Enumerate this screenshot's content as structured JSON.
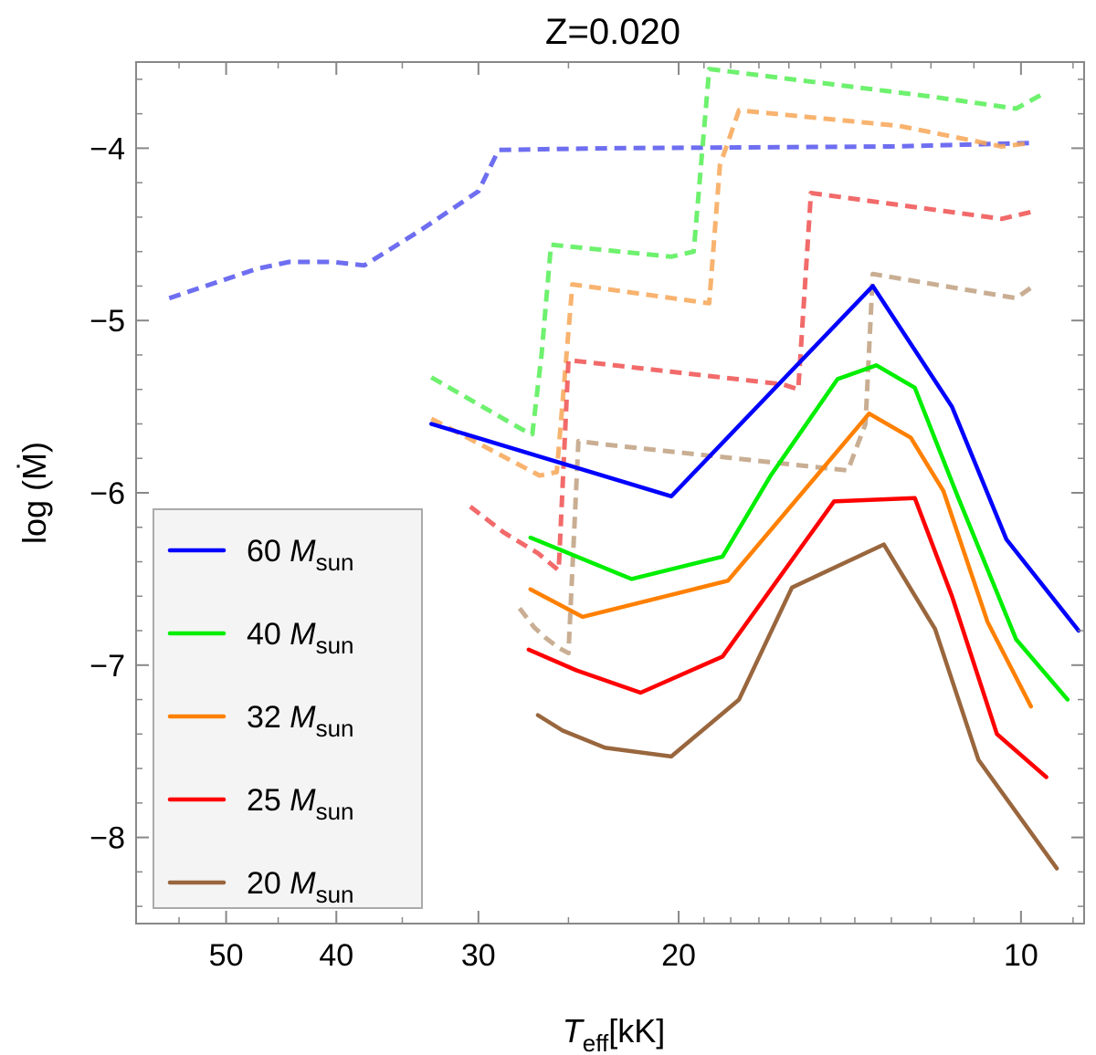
{
  "chart_data": {
    "type": "line",
    "title": "Z=0.020",
    "xlabel": {
      "main": "T",
      "sub": "eff",
      "unit": "[kK]"
    },
    "ylabel": "log (Ṁ)",
    "x_scale": "log-reversed",
    "xlim": [
      60,
      8.8
    ],
    "ylim": [
      -8.5,
      -3.5
    ],
    "x_ticks": [
      50,
      40,
      30,
      20,
      10
    ],
    "x_ticks_minor": [
      55,
      45,
      35,
      25,
      19,
      18,
      17,
      16,
      15,
      14,
      13,
      12,
      11,
      9
    ],
    "y_ticks": [
      -8,
      -7,
      -6,
      -5,
      -4
    ],
    "legend": {
      "position": "bottom-left",
      "entries": [
        {
          "value": "60",
          "symbol": "M",
          "sub": "sun",
          "color": "#0000ff"
        },
        {
          "value": "40",
          "symbol": "M",
          "sub": "sun",
          "color": "#00ee00"
        },
        {
          "value": "32",
          "symbol": "M",
          "sub": "sun",
          "color": "#ff8000"
        },
        {
          "value": "25",
          "symbol": "M",
          "sub": "sun",
          "color": "#ff0000"
        },
        {
          "value": "20",
          "symbol": "M",
          "sub": "sun",
          "color": "#99663d"
        }
      ]
    },
    "series": [
      {
        "name": "60 Msun",
        "style": "solid",
        "color": "#0000ff",
        "x": [
          33,
          20.3,
          13.5,
          11.5,
          10.3,
          8.9
        ],
        "y": [
          -5.6,
          -6.02,
          -4.8,
          -5.5,
          -6.27,
          -6.8
        ]
      },
      {
        "name": "40 Msun",
        "style": "solid",
        "color": "#00ee00",
        "x": [
          27,
          22,
          18.3,
          16.6,
          14.5,
          13.4,
          12.4,
          11.4,
          10.1,
          9.1
        ],
        "y": [
          -6.26,
          -6.5,
          -6.37,
          -5.9,
          -5.34,
          -5.26,
          -5.39,
          -6.0,
          -6.85,
          -7.2
        ]
      },
      {
        "name": "32 Msun",
        "style": "solid",
        "color": "#ff8000",
        "x": [
          27,
          24.3,
          18.1,
          13.6,
          12.5,
          11.7,
          10.7,
          9.8
        ],
        "y": [
          -6.56,
          -6.72,
          -6.51,
          -5.54,
          -5.68,
          -5.99,
          -6.75,
          -7.24
        ]
      },
      {
        "name": "25 Msun",
        "style": "solid",
        "color": "#ff0000",
        "x": [
          27.1,
          24.6,
          21.6,
          18.3,
          14.6,
          12.4,
          11.5,
          10.5,
          9.5
        ],
        "y": [
          -6.91,
          -7.03,
          -7.16,
          -6.95,
          -6.05,
          -6.03,
          -6.6,
          -7.4,
          -7.65
        ]
      },
      {
        "name": "20 Msun",
        "style": "solid",
        "color": "#99663d",
        "x": [
          26.6,
          25.3,
          23.2,
          20.3,
          17.7,
          15.9,
          13.2,
          11.9,
          10.9,
          9.3
        ],
        "y": [
          -7.29,
          -7.38,
          -7.48,
          -7.53,
          -7.2,
          -6.55,
          -6.3,
          -6.79,
          -7.55,
          -8.18
        ]
      },
      {
        "name": "60 Msun dashed",
        "style": "dashed",
        "color": "#5555ee",
        "x": [
          56.1,
          50.0,
          47.0,
          44.0,
          40.3,
          37.8,
          33.8,
          30.0,
          28.8,
          23.0,
          13.0,
          9.8
        ],
        "y": [
          -4.87,
          -4.76,
          -4.7,
          -4.66,
          -4.66,
          -4.68,
          -4.48,
          -4.25,
          -4.01,
          -4.0,
          -3.99,
          -3.97
        ]
      },
      {
        "name": "40 Msun dashed",
        "style": "dashed",
        "color": "#55ee55",
        "x": [
          33,
          27.5,
          26.9,
          26.4,
          25.9,
          20.3,
          19.4,
          18.8,
          12.0,
          10.1,
          9.6
        ],
        "y": [
          -5.33,
          -5.63,
          -5.66,
          -5.2,
          -4.56,
          -4.63,
          -4.6,
          -3.54,
          -3.7,
          -3.77,
          -3.69
        ]
      },
      {
        "name": "32 Msun dashed",
        "style": "dashed",
        "color": "#f7a656",
        "x": [
          33,
          26.5,
          25.6,
          24.8,
          18.8,
          18.4,
          17.7,
          12.8,
          10.4,
          9.8
        ],
        "y": [
          -5.57,
          -5.9,
          -5.88,
          -4.79,
          -4.9,
          -4.1,
          -3.78,
          -3.87,
          -3.99,
          -3.97
        ]
      },
      {
        "name": "25 Msun dashed",
        "style": "dashed",
        "color": "#f05050",
        "x": [
          30.5,
          28.5,
          26.6,
          25.5,
          25.0,
          16.2,
          15.7,
          15.3,
          10.4,
          9.8
        ],
        "y": [
          -6.08,
          -6.23,
          -6.35,
          -6.45,
          -5.23,
          -5.37,
          -5.4,
          -4.26,
          -4.41,
          -4.37
        ]
      },
      {
        "name": "20 Msun dashed",
        "style": "dashed",
        "color": "#c0a080",
        "x": [
          27.6,
          26.8,
          26.2,
          25.5,
          25.0,
          24.5,
          23.2,
          14.2,
          13.7,
          13.5,
          10.1,
          9.8
        ],
        "y": [
          -6.67,
          -6.78,
          -6.84,
          -6.9,
          -6.93,
          -5.7,
          -5.72,
          -5.87,
          -5.6,
          -4.73,
          -4.87,
          -4.81
        ]
      }
    ]
  }
}
